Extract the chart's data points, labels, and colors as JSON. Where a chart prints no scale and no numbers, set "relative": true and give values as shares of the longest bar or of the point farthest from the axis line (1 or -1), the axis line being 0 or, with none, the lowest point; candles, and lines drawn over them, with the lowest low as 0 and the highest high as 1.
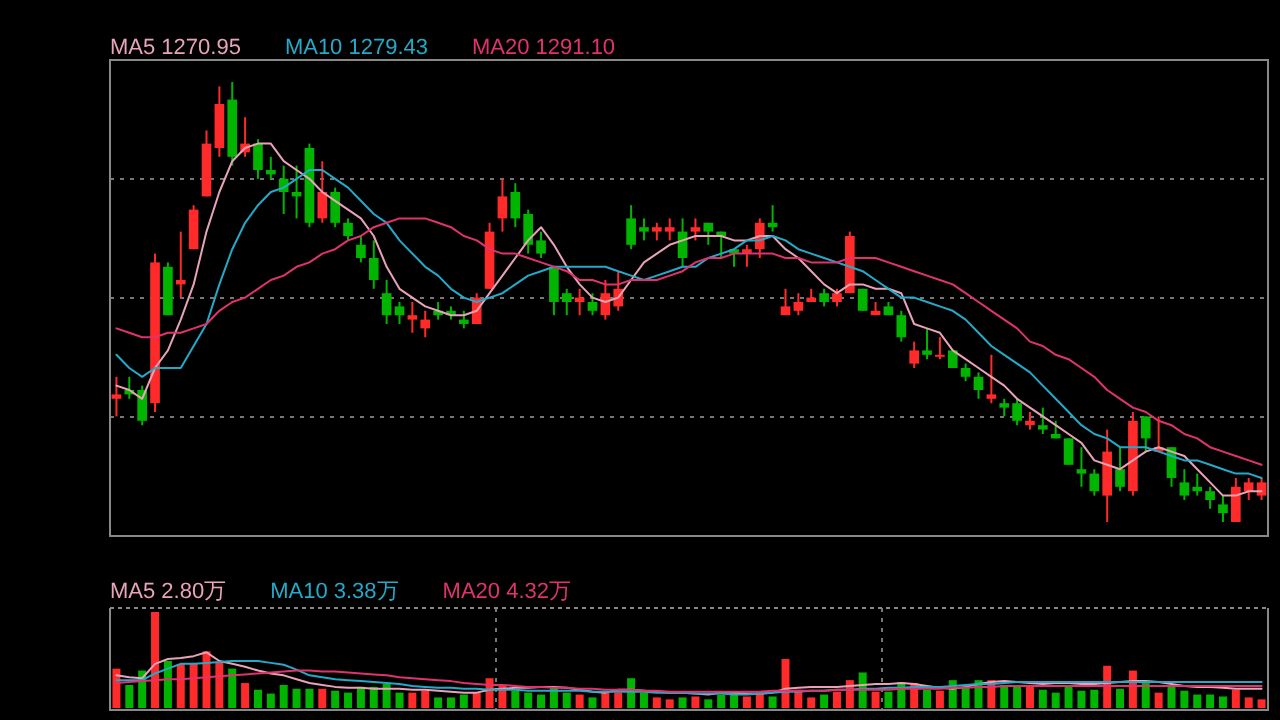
{
  "chart_data": [
    {
      "type": "candlestick",
      "relative": true,
      "grid": "y",
      "legend": "top left",
      "categories": [
        null,
        null,
        null,
        null,
        null,
        null,
        null,
        null,
        null,
        null,
        null,
        null,
        null,
        null,
        null,
        null,
        null,
        null,
        null,
        null,
        null,
        null,
        null,
        null,
        null,
        null,
        null,
        null,
        null,
        null,
        null,
        null,
        null,
        null,
        null,
        null,
        null,
        null,
        null,
        null,
        null,
        null,
        null,
        null,
        null,
        null,
        null,
        null,
        null,
        null,
        null,
        null,
        null,
        null,
        null,
        null,
        null,
        null,
        null,
        null,
        null,
        null,
        null,
        null,
        null,
        null,
        null,
        null,
        null,
        null,
        null,
        null,
        null,
        null,
        null,
        null,
        null,
        null,
        null,
        null,
        null,
        null,
        null,
        null,
        null,
        null,
        null,
        null,
        null,
        null
      ],
      "ohlc": [
        [
          0.28,
          0.33,
          0.24,
          0.29
        ],
        [
          0.3,
          0.33,
          0.28,
          0.29
        ],
        [
          0.3,
          0.31,
          0.22,
          0.23
        ],
        [
          0.27,
          0.61,
          0.25,
          0.59
        ],
        [
          0.58,
          0.59,
          0.47,
          0.47
        ],
        [
          0.54,
          0.66,
          0.51,
          0.55
        ],
        [
          0.62,
          0.72,
          0.62,
          0.71
        ],
        [
          0.74,
          0.89,
          0.74,
          0.86
        ],
        [
          0.85,
          0.99,
          0.83,
          0.95
        ],
        [
          0.96,
          1,
          0.81,
          0.83
        ],
        [
          0.84,
          0.92,
          0.83,
          0.86
        ],
        [
          0.86,
          0.87,
          0.78,
          0.8
        ],
        [
          0.8,
          0.83,
          0.78,
          0.79
        ],
        [
          0.78,
          0.81,
          0.7,
          0.75
        ],
        [
          0.75,
          0.81,
          0.69,
          0.74
        ],
        [
          0.85,
          0.86,
          0.67,
          0.68
        ],
        [
          0.69,
          0.82,
          0.68,
          0.75
        ],
        [
          0.75,
          0.76,
          0.67,
          0.68
        ],
        [
          0.68,
          0.69,
          0.64,
          0.65
        ],
        [
          0.63,
          0.65,
          0.59,
          0.6
        ],
        [
          0.6,
          0.64,
          0.53,
          0.55
        ],
        [
          0.52,
          0.55,
          0.45,
          0.47
        ],
        [
          0.49,
          0.5,
          0.45,
          0.47
        ],
        [
          0.46,
          0.5,
          0.43,
          0.47
        ],
        [
          0.44,
          0.48,
          0.42,
          0.46
        ],
        [
          0.48,
          0.5,
          0.46,
          0.47
        ],
        [
          0.48,
          0.49,
          0.46,
          0.47
        ],
        [
          0.46,
          0.48,
          0.44,
          0.45
        ],
        [
          0.45,
          0.52,
          0.45,
          0.51
        ],
        [
          0.53,
          0.68,
          0.53,
          0.66
        ],
        [
          0.69,
          0.78,
          0.66,
          0.74
        ],
        [
          0.75,
          0.77,
          0.67,
          0.69
        ],
        [
          0.7,
          0.71,
          0.61,
          0.63
        ],
        [
          0.64,
          0.66,
          0.6,
          0.61
        ],
        [
          0.58,
          0.58,
          0.47,
          0.5
        ],
        [
          0.52,
          0.53,
          0.47,
          0.5
        ],
        [
          0.5,
          0.53,
          0.47,
          0.51
        ],
        [
          0.5,
          0.52,
          0.47,
          0.48
        ],
        [
          0.47,
          0.55,
          0.46,
          0.52
        ],
        [
          0.49,
          0.57,
          0.48,
          0.53
        ],
        [
          0.69,
          0.72,
          0.62,
          0.63
        ],
        [
          0.67,
          0.69,
          0.64,
          0.66
        ],
        [
          0.66,
          0.68,
          0.64,
          0.67
        ],
        [
          0.66,
          0.69,
          0.64,
          0.67
        ],
        [
          0.66,
          0.69,
          0.58,
          0.6
        ],
        [
          0.66,
          0.69,
          0.64,
          0.67
        ],
        [
          0.68,
          0.68,
          0.63,
          0.66
        ],
        [
          0.66,
          0.66,
          0.6,
          0.65
        ],
        [
          0.62,
          0.62,
          0.58,
          0.61
        ],
        [
          0.61,
          0.63,
          0.58,
          0.62
        ],
        [
          0.62,
          0.69,
          0.6,
          0.68
        ],
        [
          0.68,
          0.72,
          0.66,
          0.67
        ],
        [
          0.47,
          0.53,
          0.47,
          0.49
        ],
        [
          0.48,
          0.52,
          0.47,
          0.5
        ],
        [
          0.5,
          0.53,
          0.5,
          0.51
        ],
        [
          0.52,
          0.53,
          0.49,
          0.5
        ],
        [
          0.5,
          0.53,
          0.49,
          0.52
        ],
        [
          0.52,
          0.66,
          0.52,
          0.65
        ],
        [
          0.53,
          0.53,
          0.48,
          0.48
        ],
        [
          0.47,
          0.5,
          0.47,
          0.48
        ],
        [
          0.49,
          0.5,
          0.47,
          0.47
        ],
        [
          0.47,
          0.48,
          0.41,
          0.42
        ],
        [
          0.36,
          0.41,
          0.35,
          0.39
        ],
        [
          0.39,
          0.44,
          0.37,
          0.38
        ],
        [
          0.38,
          0.42,
          0.37,
          0.38
        ],
        [
          0.39,
          0.39,
          0.35,
          0.35
        ],
        [
          0.35,
          0.36,
          0.32,
          0.33
        ],
        [
          0.33,
          0.34,
          0.28,
          0.3
        ],
        [
          0.28,
          0.38,
          0.27,
          0.29
        ],
        [
          0.27,
          0.28,
          0.24,
          0.26
        ],
        [
          0.27,
          0.28,
          0.22,
          0.23
        ],
        [
          0.22,
          0.25,
          0.21,
          0.23
        ],
        [
          0.22,
          0.26,
          0.2,
          0.21
        ],
        [
          0.2,
          0.23,
          0.19,
          0.19
        ],
        [
          0.19,
          0.19,
          0.13,
          0.13
        ],
        [
          0.12,
          0.17,
          0.08,
          0.11
        ],
        [
          0.11,
          0.12,
          0.06,
          0.07
        ],
        [
          0.06,
          0.21,
          0,
          0.16
        ],
        [
          0.12,
          0.17,
          0.07,
          0.08
        ],
        [
          0.07,
          0.25,
          0.06,
          0.23
        ],
        [
          0.24,
          0.24,
          0.16,
          0.19
        ],
        [
          0.16,
          0.24,
          0.16,
          0.17
        ],
        [
          0.17,
          0.17,
          0.08,
          0.1
        ],
        [
          0.09,
          0.12,
          0.05,
          0.06
        ],
        [
          0.08,
          0.11,
          0.06,
          0.07
        ],
        [
          0.07,
          0.08,
          0.03,
          0.05
        ],
        [
          0.04,
          0.06,
          0,
          0.02
        ],
        [
          0,
          0.1,
          0,
          0.08
        ],
        [
          0.07,
          0.1,
          0.05,
          0.09
        ],
        [
          0.06,
          0.1,
          0.05,
          0.09
        ]
      ],
      "colors": [
        "#ff2a2a",
        "#00b400",
        "#00b400",
        "#ff2a2a",
        "#00b400",
        "#ff2a2a",
        "#ff2a2a",
        "#ff2a2a",
        "#ff2a2a",
        "#00b400",
        "#ff2a2a",
        "#00b400",
        "#00b400",
        "#00b400",
        "#00b400",
        "#00b400",
        "#ff2a2a",
        "#00b400",
        "#00b400",
        "#00b400",
        "#00b400",
        "#00b400",
        "#00b400",
        "#ff2a2a",
        "#ff2a2a",
        "#00b400",
        "#00b400",
        "#00b400",
        "#ff2a2a",
        "#ff2a2a",
        "#ff2a2a",
        "#00b400",
        "#00b400",
        "#00b400",
        "#00b400",
        "#00b400",
        "#ff2a2a",
        "#00b400",
        "#ff2a2a",
        "#ff2a2a",
        "#00b400",
        "#00b400",
        "#ff2a2a",
        "#ff2a2a",
        "#00b400",
        "#ff2a2a",
        "#00b400",
        "#00b400",
        "#00b400",
        "#ff2a2a",
        "#ff2a2a",
        "#00b400",
        "#ff2a2a",
        "#ff2a2a",
        "#ff2a2a",
        "#00b400",
        "#ff2a2a",
        "#ff2a2a",
        "#00b400",
        "#ff2a2a",
        "#00b400",
        "#00b400",
        "#ff2a2a",
        "#00b400",
        "#ff2a2a",
        "#00b400",
        "#00b400",
        "#00b400",
        "#ff2a2a",
        "#00b400",
        "#00b400",
        "#ff2a2a",
        "#00b400",
        "#00b400",
        "#00b400",
        "#00b400",
        "#00b400",
        "#ff2a2a",
        "#00b400",
        "#ff2a2a",
        "#00b400",
        "#ff2a2a",
        "#00b400",
        "#00b400",
        "#00b400",
        "#00b400",
        "#00b400",
        "#ff2a2a",
        "#ff2a2a",
        "#ff2a2a"
      ],
      "series": [
        {
          "name": "MA5 1270.95",
          "type": "line",
          "color": "#e8a3b8",
          "values": [
            0.31,
            0.3,
            0.28,
            0.35,
            0.39,
            0.46,
            0.54,
            0.66,
            0.75,
            0.82,
            0.85,
            0.86,
            0.86,
            0.82,
            0.8,
            0.78,
            0.75,
            0.73,
            0.71,
            0.69,
            0.65,
            0.58,
            0.53,
            0.51,
            0.49,
            0.48,
            0.47,
            0.47,
            0.48,
            0.52,
            0.56,
            0.6,
            0.64,
            0.67,
            0.63,
            0.58,
            0.54,
            0.51,
            0.5,
            0.51,
            0.55,
            0.59,
            0.61,
            0.63,
            0.64,
            0.65,
            0.65,
            0.65,
            0.64,
            0.64,
            0.65,
            0.65,
            0.62,
            0.6,
            0.57,
            0.54,
            0.52,
            0.54,
            0.54,
            0.53,
            0.53,
            0.52,
            0.45,
            0.44,
            0.43,
            0.39,
            0.37,
            0.35,
            0.33,
            0.31,
            0.28,
            0.26,
            0.24,
            0.22,
            0.2,
            0.18,
            0.14,
            0.13,
            0.12,
            0.14,
            0.16,
            0.17,
            0.16,
            0.15,
            0.12,
            0.09,
            0.06,
            0.06,
            0.07,
            0.07
          ]
        },
        {
          "name": "MA10 1279.43",
          "type": "line",
          "color": "#25a9c9",
          "values": [
            0.38,
            0.35,
            0.33,
            0.35,
            0.35,
            0.35,
            0.4,
            0.45,
            0.54,
            0.62,
            0.68,
            0.72,
            0.75,
            0.76,
            0.78,
            0.8,
            0.8,
            0.78,
            0.76,
            0.73,
            0.7,
            0.68,
            0.64,
            0.61,
            0.58,
            0.56,
            0.53,
            0.51,
            0.5,
            0.51,
            0.52,
            0.54,
            0.56,
            0.57,
            0.58,
            0.58,
            0.58,
            0.58,
            0.58,
            0.57,
            0.56,
            0.55,
            0.56,
            0.57,
            0.58,
            0.58,
            0.6,
            0.61,
            0.62,
            0.64,
            0.64,
            0.65,
            0.64,
            0.62,
            0.61,
            0.6,
            0.59,
            0.58,
            0.57,
            0.55,
            0.53,
            0.51,
            0.51,
            0.5,
            0.49,
            0.48,
            0.46,
            0.43,
            0.4,
            0.38,
            0.36,
            0.34,
            0.31,
            0.28,
            0.25,
            0.22,
            0.2,
            0.19,
            0.17,
            0.17,
            0.17,
            0.16,
            0.15,
            0.14,
            0.14,
            0.13,
            0.12,
            0.11,
            0.11,
            0.1
          ]
        },
        {
          "name": "MA20 1291.10",
          "type": "line",
          "color": "#e0336e",
          "values": [
            0.44,
            0.43,
            0.42,
            0.42,
            0.43,
            0.43,
            0.44,
            0.45,
            0.48,
            0.5,
            0.51,
            0.53,
            0.55,
            0.56,
            0.58,
            0.59,
            0.61,
            0.62,
            0.64,
            0.65,
            0.67,
            0.68,
            0.69,
            0.69,
            0.69,
            0.68,
            0.67,
            0.65,
            0.64,
            0.62,
            0.61,
            0.61,
            0.6,
            0.59,
            0.58,
            0.57,
            0.55,
            0.55,
            0.54,
            0.54,
            0.55,
            0.55,
            0.55,
            0.56,
            0.57,
            0.59,
            0.6,
            0.6,
            0.61,
            0.61,
            0.61,
            0.61,
            0.6,
            0.6,
            0.59,
            0.59,
            0.59,
            0.6,
            0.6,
            0.6,
            0.59,
            0.58,
            0.57,
            0.56,
            0.55,
            0.54,
            0.52,
            0.5,
            0.48,
            0.46,
            0.44,
            0.41,
            0.4,
            0.38,
            0.37,
            0.35,
            0.33,
            0.3,
            0.28,
            0.26,
            0.25,
            0.23,
            0.22,
            0.2,
            0.19,
            0.17,
            0.16,
            0.15,
            0.14,
            0.13
          ]
        }
      ]
    },
    {
      "type": "bar",
      "relative": true,
      "grid": "x",
      "legend": "top left",
      "categories": [
        null,
        null,
        null,
        null,
        null,
        null,
        null,
        null,
        null,
        null,
        null,
        null,
        null,
        null,
        null,
        null,
        null,
        null,
        null,
        null,
        null,
        null,
        null,
        null,
        null,
        null,
        null,
        null,
        null,
        null,
        null,
        null,
        null,
        null,
        null,
        null,
        null,
        null,
        null,
        null,
        null,
        null,
        null,
        null,
        null,
        null,
        null,
        null,
        null,
        null,
        null,
        null,
        null,
        null,
        null,
        null,
        null,
        null,
        null,
        null,
        null,
        null,
        null,
        null,
        null,
        null,
        null,
        null,
        null,
        null,
        null,
        null,
        null,
        null,
        null,
        null,
        null,
        null,
        null,
        null,
        null,
        null,
        null,
        null,
        null,
        null,
        null,
        null,
        null,
        null
      ],
      "values": [
        0.41,
        0.24,
        0.39,
        1,
        0.49,
        0.46,
        0.46,
        0.59,
        0.48,
        0.41,
        0.26,
        0.19,
        0.15,
        0.24,
        0.2,
        0.2,
        0.2,
        0.18,
        0.16,
        0.22,
        0.22,
        0.25,
        0.16,
        0.16,
        0.18,
        0.11,
        0.11,
        0.14,
        0.16,
        0.31,
        0.24,
        0.18,
        0.16,
        0.14,
        0.22,
        0.16,
        0.14,
        0.11,
        0.16,
        0.16,
        0.31,
        0.16,
        0.11,
        0.09,
        0.11,
        0.12,
        0.09,
        0.14,
        0.16,
        0.12,
        0.16,
        0.12,
        0.51,
        0.19,
        0.11,
        0.14,
        0.17,
        0.29,
        0.37,
        0.17,
        0.17,
        0.27,
        0.26,
        0.19,
        0.18,
        0.29,
        0.22,
        0.29,
        0.29,
        0.24,
        0.24,
        0.24,
        0.19,
        0.16,
        0.22,
        0.18,
        0.19,
        0.44,
        0.2,
        0.39,
        0.26,
        0.16,
        0.22,
        0.18,
        0.14,
        0.14,
        0.12,
        0.19,
        0.11,
        0.09
      ],
      "colors": [
        "#ff2a2a",
        "#00b400",
        "#00b400",
        "#ff2a2a",
        "#00b400",
        "#ff2a2a",
        "#ff2a2a",
        "#ff2a2a",
        "#ff2a2a",
        "#00b400",
        "#ff2a2a",
        "#00b400",
        "#00b400",
        "#00b400",
        "#00b400",
        "#00b400",
        "#ff2a2a",
        "#00b400",
        "#00b400",
        "#00b400",
        "#00b400",
        "#00b400",
        "#00b400",
        "#ff2a2a",
        "#ff2a2a",
        "#00b400",
        "#00b400",
        "#00b400",
        "#ff2a2a",
        "#ff2a2a",
        "#ff2a2a",
        "#00b400",
        "#00b400",
        "#00b400",
        "#00b400",
        "#00b400",
        "#ff2a2a",
        "#00b400",
        "#ff2a2a",
        "#ff2a2a",
        "#00b400",
        "#00b400",
        "#ff2a2a",
        "#ff2a2a",
        "#00b400",
        "#ff2a2a",
        "#00b400",
        "#00b400",
        "#00b400",
        "#ff2a2a",
        "#ff2a2a",
        "#00b400",
        "#ff2a2a",
        "#ff2a2a",
        "#ff2a2a",
        "#00b400",
        "#ff2a2a",
        "#ff2a2a",
        "#00b400",
        "#ff2a2a",
        "#00b400",
        "#00b400",
        "#ff2a2a",
        "#00b400",
        "#ff2a2a",
        "#00b400",
        "#00b400",
        "#00b400",
        "#ff2a2a",
        "#00b400",
        "#00b400",
        "#ff2a2a",
        "#00b400",
        "#00b400",
        "#00b400",
        "#00b400",
        "#00b400",
        "#ff2a2a",
        "#00b400",
        "#ff2a2a",
        "#00b400",
        "#ff2a2a",
        "#00b400",
        "#00b400",
        "#00b400",
        "#00b400",
        "#00b400",
        "#ff2a2a",
        "#ff2a2a",
        "#ff2a2a"
      ],
      "series": [
        {
          "name": "MA5 2.80万",
          "type": "line",
          "color": "#e8a3b8",
          "values": [
            0.34,
            0.32,
            0.31,
            0.46,
            0.51,
            0.52,
            0.54,
            0.58,
            0.49,
            0.46,
            0.43,
            0.39,
            0.36,
            0.34,
            0.3,
            0.26,
            0.24,
            0.22,
            0.21,
            0.21,
            0.2,
            0.2,
            0.2,
            0.19,
            0.19,
            0.18,
            0.17,
            0.16,
            0.16,
            0.19,
            0.2,
            0.21,
            0.21,
            0.22,
            0.22,
            0.21,
            0.19,
            0.17,
            0.16,
            0.19,
            0.19,
            0.18,
            0.17,
            0.16,
            0.16,
            0.15,
            0.14,
            0.16,
            0.16,
            0.15,
            0.15,
            0.16,
            0.2,
            0.21,
            0.22,
            0.22,
            0.22,
            0.23,
            0.24,
            0.25,
            0.25,
            0.26,
            0.25,
            0.23,
            0.21,
            0.2,
            0.22,
            0.25,
            0.27,
            0.28,
            0.27,
            0.26,
            0.25,
            0.26,
            0.26,
            0.25,
            0.25,
            0.26,
            0.27,
            0.28,
            0.28,
            0.27,
            0.25,
            0.23,
            0.22,
            0.22,
            0.21,
            0.2,
            0.2,
            0.2
          ]
        },
        {
          "name": "MA10 3.38万",
          "type": "line",
          "color": "#25a9c9",
          "values": [
            0.29,
            0.29,
            0.29,
            0.36,
            0.41,
            0.46,
            0.46,
            0.47,
            0.48,
            0.49,
            0.49,
            0.49,
            0.47,
            0.45,
            0.4,
            0.34,
            0.32,
            0.3,
            0.29,
            0.28,
            0.27,
            0.26,
            0.25,
            0.23,
            0.22,
            0.21,
            0.21,
            0.2,
            0.2,
            0.19,
            0.19,
            0.19,
            0.18,
            0.18,
            0.18,
            0.18,
            0.18,
            0.17,
            0.17,
            0.17,
            0.17,
            0.17,
            0.16,
            0.16,
            0.16,
            0.15,
            0.15,
            0.15,
            0.14,
            0.14,
            0.15,
            0.16,
            0.17,
            0.17,
            0.18,
            0.18,
            0.19,
            0.19,
            0.2,
            0.2,
            0.21,
            0.21,
            0.22,
            0.22,
            0.22,
            0.23,
            0.24,
            0.25,
            0.25,
            0.26,
            0.27,
            0.27,
            0.27,
            0.27,
            0.27,
            0.27,
            0.27,
            0.27,
            0.27,
            0.27,
            0.27,
            0.27,
            0.27,
            0.27,
            0.27,
            0.27,
            0.27,
            0.27,
            0.27,
            0.27
          ]
        },
        {
          "name": "MA20 4.32万",
          "type": "line",
          "color": "#e0336e",
          "values": [
            0.26,
            0.27,
            0.28,
            0.29,
            0.3,
            0.3,
            0.31,
            0.32,
            0.33,
            0.34,
            0.35,
            0.36,
            0.37,
            0.38,
            0.39,
            0.39,
            0.38,
            0.38,
            0.37,
            0.36,
            0.35,
            0.34,
            0.32,
            0.31,
            0.3,
            0.29,
            0.28,
            0.26,
            0.25,
            0.24,
            0.24,
            0.23,
            0.22,
            0.22,
            0.21,
            0.21,
            0.2,
            0.2,
            0.19,
            0.19,
            0.19,
            0.18,
            0.18,
            0.17,
            0.17,
            0.17,
            0.17,
            0.17,
            0.17,
            0.17,
            0.17,
            0.18,
            0.18,
            0.18,
            0.18,
            0.18,
            0.19,
            0.19,
            0.19,
            0.19,
            0.19,
            0.2,
            0.2,
            0.2,
            0.2,
            0.21,
            0.21,
            0.22,
            0.22,
            0.23,
            0.23,
            0.23,
            0.23,
            0.23,
            0.23,
            0.23,
            0.23,
            0.23,
            0.23,
            0.23,
            0.23,
            0.23,
            0.23,
            0.23,
            0.23,
            0.23,
            0.23,
            0.23,
            0.23,
            0.23
          ]
        }
      ]
    }
  ]
}
